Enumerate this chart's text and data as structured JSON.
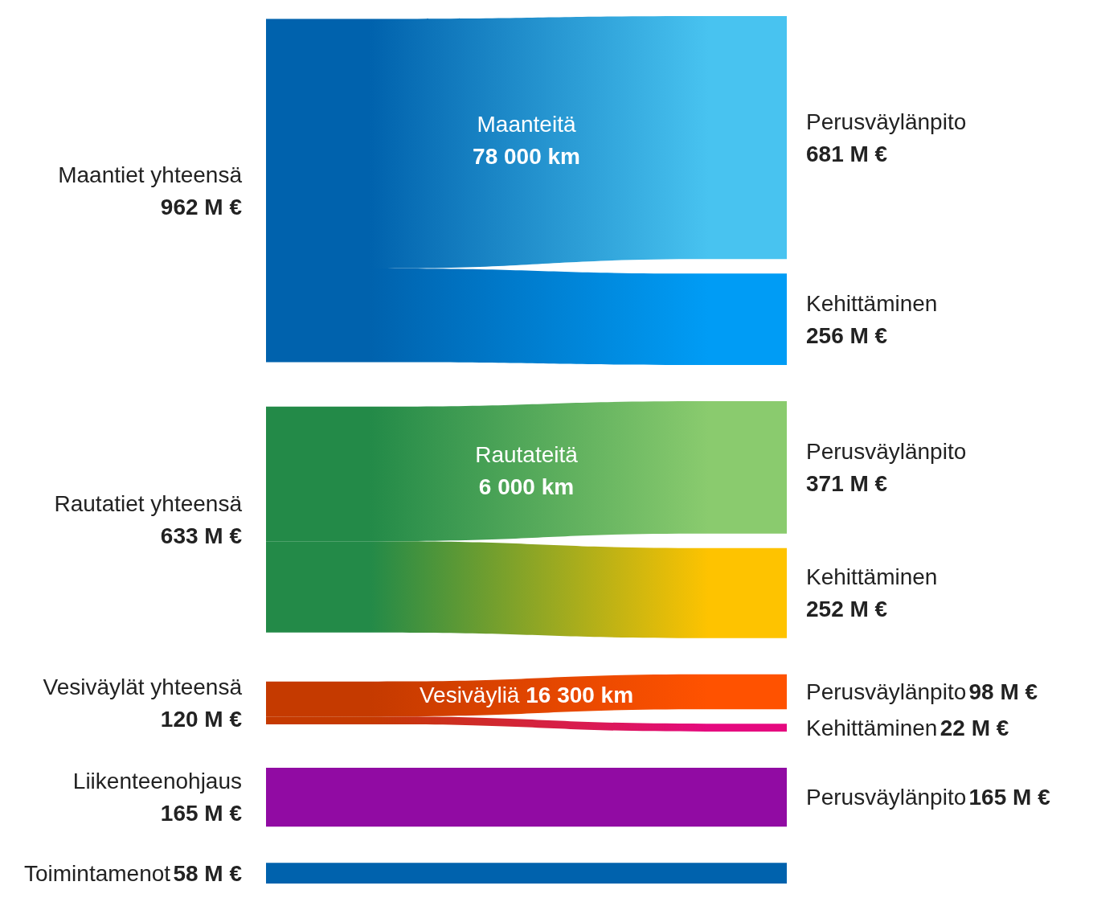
{
  "chart_data": {
    "type": "other",
    "categories": [
      "Maantiet yhteensä",
      "Rautatiet yhteensä",
      "Vesiväylät yhteensä",
      "Liikenteenohjaus",
      "Toimintamenot"
    ],
    "values": [
      962,
      633,
      120,
      165,
      58
    ],
    "value_labels": [
      "962 M €",
      "633 M €",
      "120 M €",
      "165 M €",
      "58 M €"
    ],
    "colors": [
      "#0062ad",
      "#238a48",
      "#c53a00",
      "#910ba3",
      "#0062ad"
    ],
    "series": [
      {
        "name": "Perusväylänpito",
        "values": [
          681,
          371,
          98,
          165,
          null
        ],
        "value_labels": [
          "681 M €",
          "371 M €",
          "98 M €",
          "165 M €",
          null
        ],
        "colors": [
          "#48c3f0",
          "#8acb6e",
          "#ff5200",
          "#910ba3",
          null
        ]
      },
      {
        "name": "Kehittäminen",
        "values": [
          256,
          252,
          22,
          null,
          null
        ],
        "value_labels": [
          "256 M €",
          "252 M €",
          "22 M €",
          null,
          null
        ],
        "colors": [
          "#009cf5",
          "#fec300",
          "#e5097f",
          null,
          null
        ]
      }
    ],
    "annotations": [
      "Maanteitä\n78 000 km",
      "Rautateitä\n6 000 km",
      "Vesiväyliä 16 300 km"
    ]
  }
}
